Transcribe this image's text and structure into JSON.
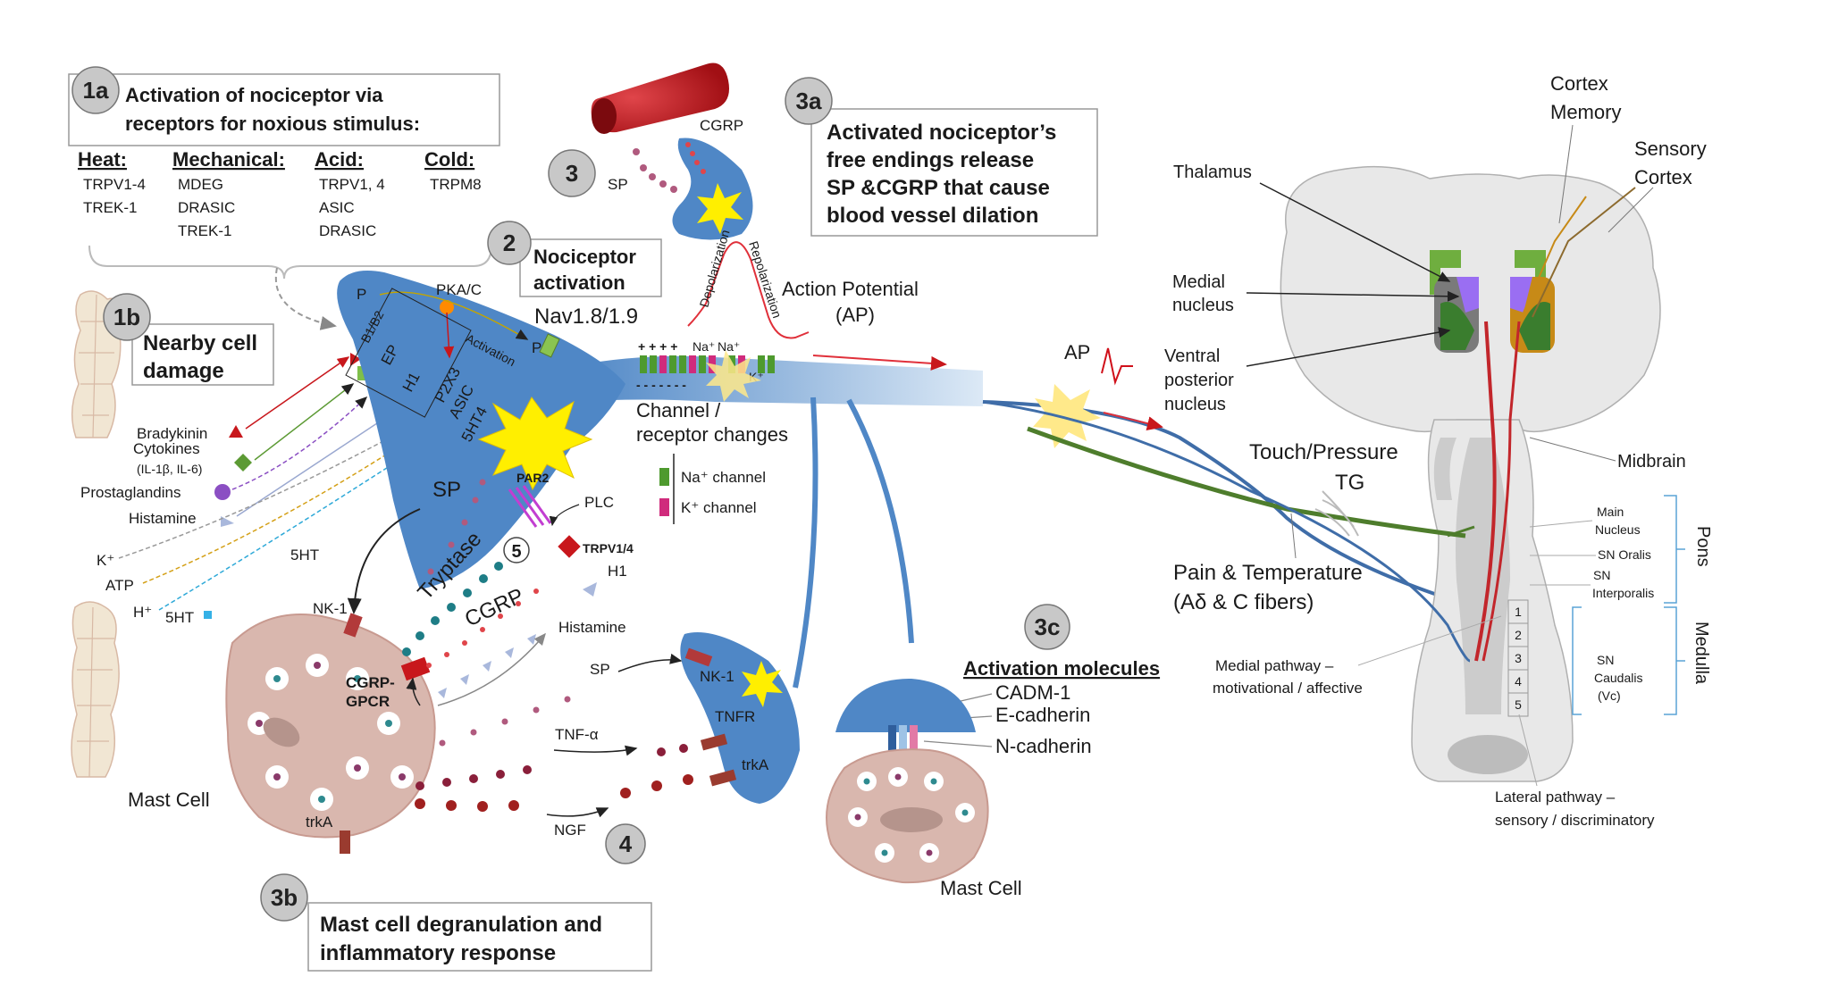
{
  "colors": {
    "neuron_blue": "#4f87c6",
    "neuron_blue_light": "#9fc3e6",
    "blood_vessel_red": "#c8171c",
    "mast_cell_pink": "#d9b7ae",
    "badge_grey": "#c8c8c8",
    "fiber_green": "#4e7d2c",
    "fiber_blue": "#3f6da8",
    "fiber_red": "#c2262b",
    "brain_grey": "#e8e8e8",
    "thalamus_green": "#6fae3f",
    "thalamus_purple": "#9a6ef2",
    "thalamus_orange": "#c78a17",
    "spark_yellow": "#ffef00"
  },
  "section_1a": {
    "badge": "1a",
    "title_line1": "Activation of nociceptor via",
    "title_line2": "receptors for noxious stimulus:",
    "columns": [
      {
        "header": "Heat:",
        "items": [
          "TRPV1-4",
          "TREK-1"
        ]
      },
      {
        "header": "Mechanical:",
        "items": [
          "MDEG",
          "DRASIC",
          "TREK-1"
        ]
      },
      {
        "header": "Acid:",
        "items": [
          "TRPV1, 4",
          "ASIC",
          "DRASIC"
        ]
      },
      {
        "header": "Cold:",
        "items": [
          "TRPM8"
        ]
      }
    ]
  },
  "section_1b": {
    "badge": "1b",
    "title_line1": "Nearby cell",
    "title_line2": "damage"
  },
  "section_2": {
    "badge": "2",
    "title_line1": "Nociceptor",
    "title_line2": "activation",
    "channel_name": "Nav1.8/1.9"
  },
  "section_3": {
    "badge": "3",
    "cgrp": "CGRP",
    "sp": "SP"
  },
  "section_3a": {
    "badge": "3a",
    "line1": "Activated nociceptor’s",
    "line2": "free endings release",
    "line3": "SP &CGRP that cause",
    "line4": "blood vessel dilation"
  },
  "section_3b": {
    "badge": "3b",
    "line1": "Mast cell degranulation and",
    "line2": "inflammatory response"
  },
  "section_3c": {
    "badge": "3c",
    "title": "Activation molecules",
    "molecules": [
      "CADM-1",
      "E-cadherin",
      "N-cadherin"
    ],
    "mast_cell": "Mast Cell"
  },
  "section_4": {
    "badge": "4",
    "tnf": "TNF-α",
    "ngf": "NGF",
    "tnfr": "TNFR",
    "trka": "trkA",
    "nk1": "NK-1",
    "sp": "SP"
  },
  "section_5": {
    "badge": "5"
  },
  "neuron_receptors": {
    "pka": "PKA/C",
    "p": "P",
    "activation": "Activation",
    "b1b2": "B1/B2",
    "ep": "EP",
    "h1": "H1",
    "p2x3": "P2X3",
    "asic": "ASIC",
    "ht4": "5HT4",
    "par2": "PAR2",
    "plc": "PLC",
    "trpv": "TRPV1/4",
    "h1_lower": "H1"
  },
  "mediators": {
    "bradykinin": "Bradykinin",
    "cytokines": "Cytokines",
    "cytokines_sub": "(IL-1β, IL-6)",
    "prostaglandins": "Prostaglandins",
    "histamine": "Histamine",
    "k": "K⁺",
    "atp": "ATP",
    "h": "H⁺",
    "ht5_left": "5HT",
    "ht5_top": "5HT",
    "mast_cell": "Mast Cell"
  },
  "mast_cell_left": {
    "nk1": "NK-1",
    "sp": "SP",
    "tryptase": "Tryptase",
    "cgrp": "CGRP",
    "cgrp_gpcr_1": "CGRP-",
    "cgrp_gpcr_2": "GPCR",
    "histamine": "Histamine",
    "trka": "trkA"
  },
  "action_potential": {
    "depolarization": "Depolarization",
    "repolarization": "Repolarization",
    "title_line1": "Action Potential",
    "title_line2": "(AP)",
    "plus_signs": "+ + + +",
    "na1": "Na⁺",
    "na2": "Na⁺",
    "k": "K⁺",
    "minus_signs": "- - - - - - -",
    "channel_changes_1": "Channel /",
    "channel_changes_2": "receptor changes",
    "na_channel": "Na⁺ channel",
    "k_channel": "K⁺ channel",
    "ap_right": "AP"
  },
  "brain": {
    "cortex": "Cortex",
    "memory": "Memory",
    "sensory": "Sensory",
    "cortex2": "Cortex",
    "thalamus": "Thalamus",
    "medial1": "Medial",
    "medial2": "nucleus",
    "ventral1": "Ventral",
    "ventral2": "posterior",
    "ventral3": "nucleus",
    "midbrain": "Midbrain",
    "touch": "Touch/Pressure",
    "tg": "TG",
    "pain1": "Pain & Temperature",
    "pain2": "(Aδ & C fibers)",
    "main1": "Main",
    "main2": "Nucleus",
    "sn_oralis": "SN Oralis",
    "sn_int1": "SN",
    "sn_int2": "Interporalis",
    "pons": "Pons",
    "medulla": "Medulla",
    "sn_caud1": "SN",
    "sn_caud2": "Caudalis",
    "sn_caud3": "(Vc)",
    "levels": [
      "1",
      "2",
      "3",
      "4",
      "5"
    ],
    "medial_path1": "Medial pathway –",
    "medial_path2": "motivational / affective",
    "lateral_path1": "Lateral pathway –",
    "lateral_path2": "sensory / discriminatory"
  }
}
